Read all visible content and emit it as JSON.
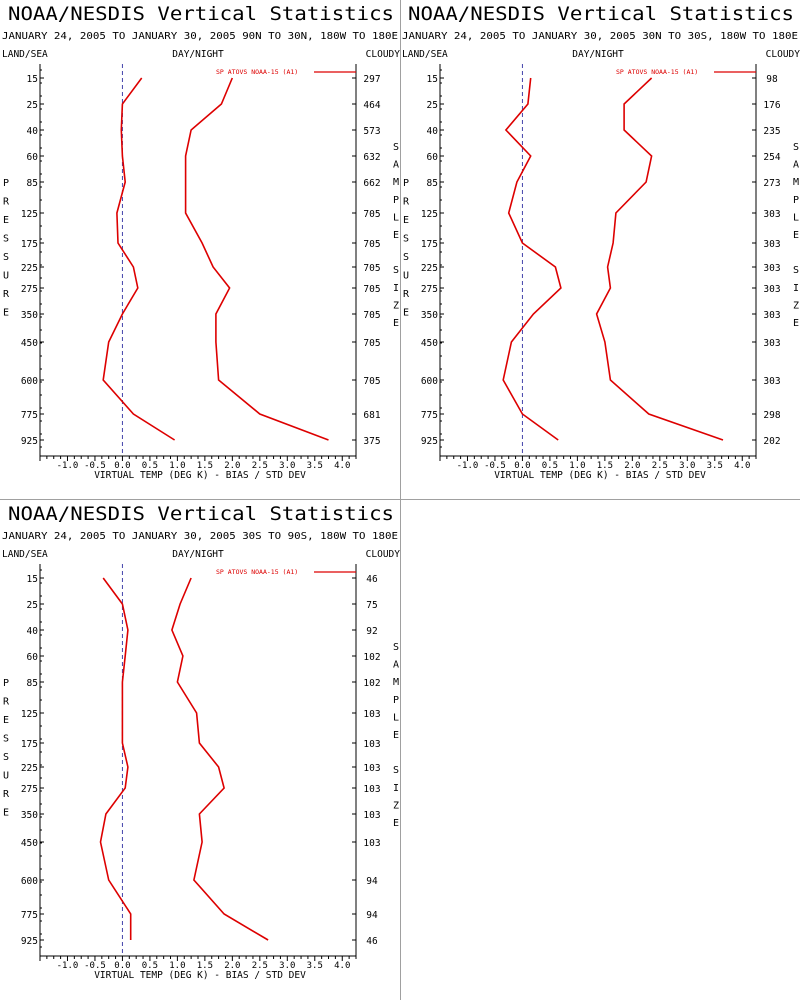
{
  "header_title": "NOAA/NESDIS Vertical Statistics",
  "labels": {
    "land_sea": "LAND/SEA",
    "day_night": "DAY/NIGHT",
    "cloudy": "CLOUDY",
    "xlabel": "VIRTUAL TEMP (DEG K) - BIAS / STD DEV",
    "left_vertical": "PRESSURE",
    "right_vertical": "SAMPLE SIZE",
    "legend": "SP ATOVS NOAA-15 (A1)"
  },
  "colors": {
    "series": "#dd0000",
    "zero_line": "#4444aa"
  },
  "chart_data": [
    {
      "type": "line",
      "title": "NOAA/NESDIS Vertical Statistics",
      "subtitle": "JANUARY 24, 2005 TO JANUARY 30, 2005 90N TO 30N, 180W TO 180E",
      "xlabel": "VIRTUAL TEMP (DEG K) - BIAS / STD DEV",
      "ylabel": "PRESSURE",
      "xlim": [
        -1.5,
        4.25
      ],
      "xticks": [
        "-1.0",
        "-0.5",
        "0.0",
        "0.5",
        "1.0",
        "1.5",
        "2.0",
        "2.5",
        "3.0",
        "3.5",
        "4.0"
      ],
      "pressure_levels": [
        "15",
        "25",
        "40",
        "60",
        "85",
        "125",
        "175",
        "225",
        "275",
        "350",
        "450",
        "600",
        "775",
        "925"
      ],
      "sample_size": [
        "297",
        "464",
        "573",
        "632",
        "662",
        "705",
        "705",
        "705",
        "705",
        "705",
        "705",
        "705",
        "681",
        "375"
      ],
      "legend": "SP ATOVS NOAA-15 (A1)",
      "series": [
        {
          "name": "bias",
          "values": [
            0.35,
            0.0,
            -0.02,
            0.0,
            0.05,
            -0.1,
            -0.08,
            0.2,
            0.28,
            0.0,
            -0.25,
            -0.35,
            0.2,
            0.95
          ]
        },
        {
          "name": "std dev",
          "values": [
            2.0,
            1.8,
            1.25,
            1.15,
            1.15,
            1.15,
            1.45,
            1.65,
            1.95,
            1.7,
            1.7,
            1.75,
            2.5,
            3.75
          ]
        }
      ]
    },
    {
      "type": "line",
      "title": "NOAA/NESDIS Vertical Statistics",
      "subtitle": "JANUARY 24, 2005 TO JANUARY 30, 2005 30N TO 30S, 180W TO 180E",
      "xlabel": "VIRTUAL TEMP (DEG K) - BIAS / STD DEV",
      "ylabel": "PRESSURE",
      "xlim": [
        -1.5,
        4.25
      ],
      "xticks": [
        "-1.0",
        "-0.5",
        "0.0",
        "0.5",
        "1.0",
        "1.5",
        "2.0",
        "2.5",
        "3.0",
        "3.5",
        "4.0"
      ],
      "pressure_levels": [
        "15",
        "25",
        "40",
        "60",
        "85",
        "125",
        "175",
        "225",
        "275",
        "350",
        "450",
        "600",
        "775",
        "925"
      ],
      "sample_size": [
        "98",
        "176",
        "235",
        "254",
        "273",
        "303",
        "303",
        "303",
        "303",
        "303",
        "303",
        "303",
        "298",
        "202"
      ],
      "legend": "SP ATOVS NOAA-15 (A1)",
      "series": [
        {
          "name": "bias",
          "values": [
            0.15,
            0.1,
            -0.3,
            0.15,
            -0.1,
            -0.25,
            0.0,
            0.6,
            0.7,
            0.2,
            -0.2,
            -0.35,
            0.0,
            0.65
          ]
        },
        {
          "name": "std dev",
          "values": [
            2.35,
            1.85,
            1.85,
            2.35,
            2.25,
            1.7,
            1.65,
            1.55,
            1.6,
            1.35,
            1.5,
            1.6,
            2.3,
            3.65
          ]
        }
      ]
    },
    {
      "type": "line",
      "title": "NOAA/NESDIS Vertical Statistics",
      "subtitle": "JANUARY 24, 2005 TO JANUARY 30, 2005 30S TO 90S, 180W TO 180E",
      "xlabel": "VIRTUAL TEMP (DEG K) - BIAS / STD DEV",
      "ylabel": "PRESSURE",
      "xlim": [
        -1.5,
        4.25
      ],
      "xticks": [
        "-1.0",
        "-0.5",
        "0.0",
        "0.5",
        "1.0",
        "1.5",
        "2.0",
        "2.5",
        "3.0",
        "3.5",
        "4.0"
      ],
      "pressure_levels": [
        "15",
        "25",
        "40",
        "60",
        "85",
        "125",
        "175",
        "225",
        "275",
        "350",
        "450",
        "600",
        "775",
        "925"
      ],
      "sample_size": [
        "46",
        "75",
        "92",
        "102",
        "102",
        "103",
        "103",
        "103",
        "103",
        "103",
        "103",
        "94",
        "94",
        "46"
      ],
      "legend": "SP ATOVS NOAA-15 (A1)",
      "series": [
        {
          "name": "bias",
          "values": [
            -0.35,
            0.0,
            0.1,
            0.05,
            0.0,
            0.0,
            0.0,
            0.1,
            0.05,
            -0.3,
            -0.4,
            -0.25,
            0.15,
            0.15
          ]
        },
        {
          "name": "std dev",
          "values": [
            1.25,
            1.05,
            0.9,
            1.1,
            1.0,
            1.35,
            1.4,
            1.75,
            1.85,
            1.4,
            1.45,
            1.3,
            1.85,
            2.65
          ]
        }
      ]
    }
  ]
}
